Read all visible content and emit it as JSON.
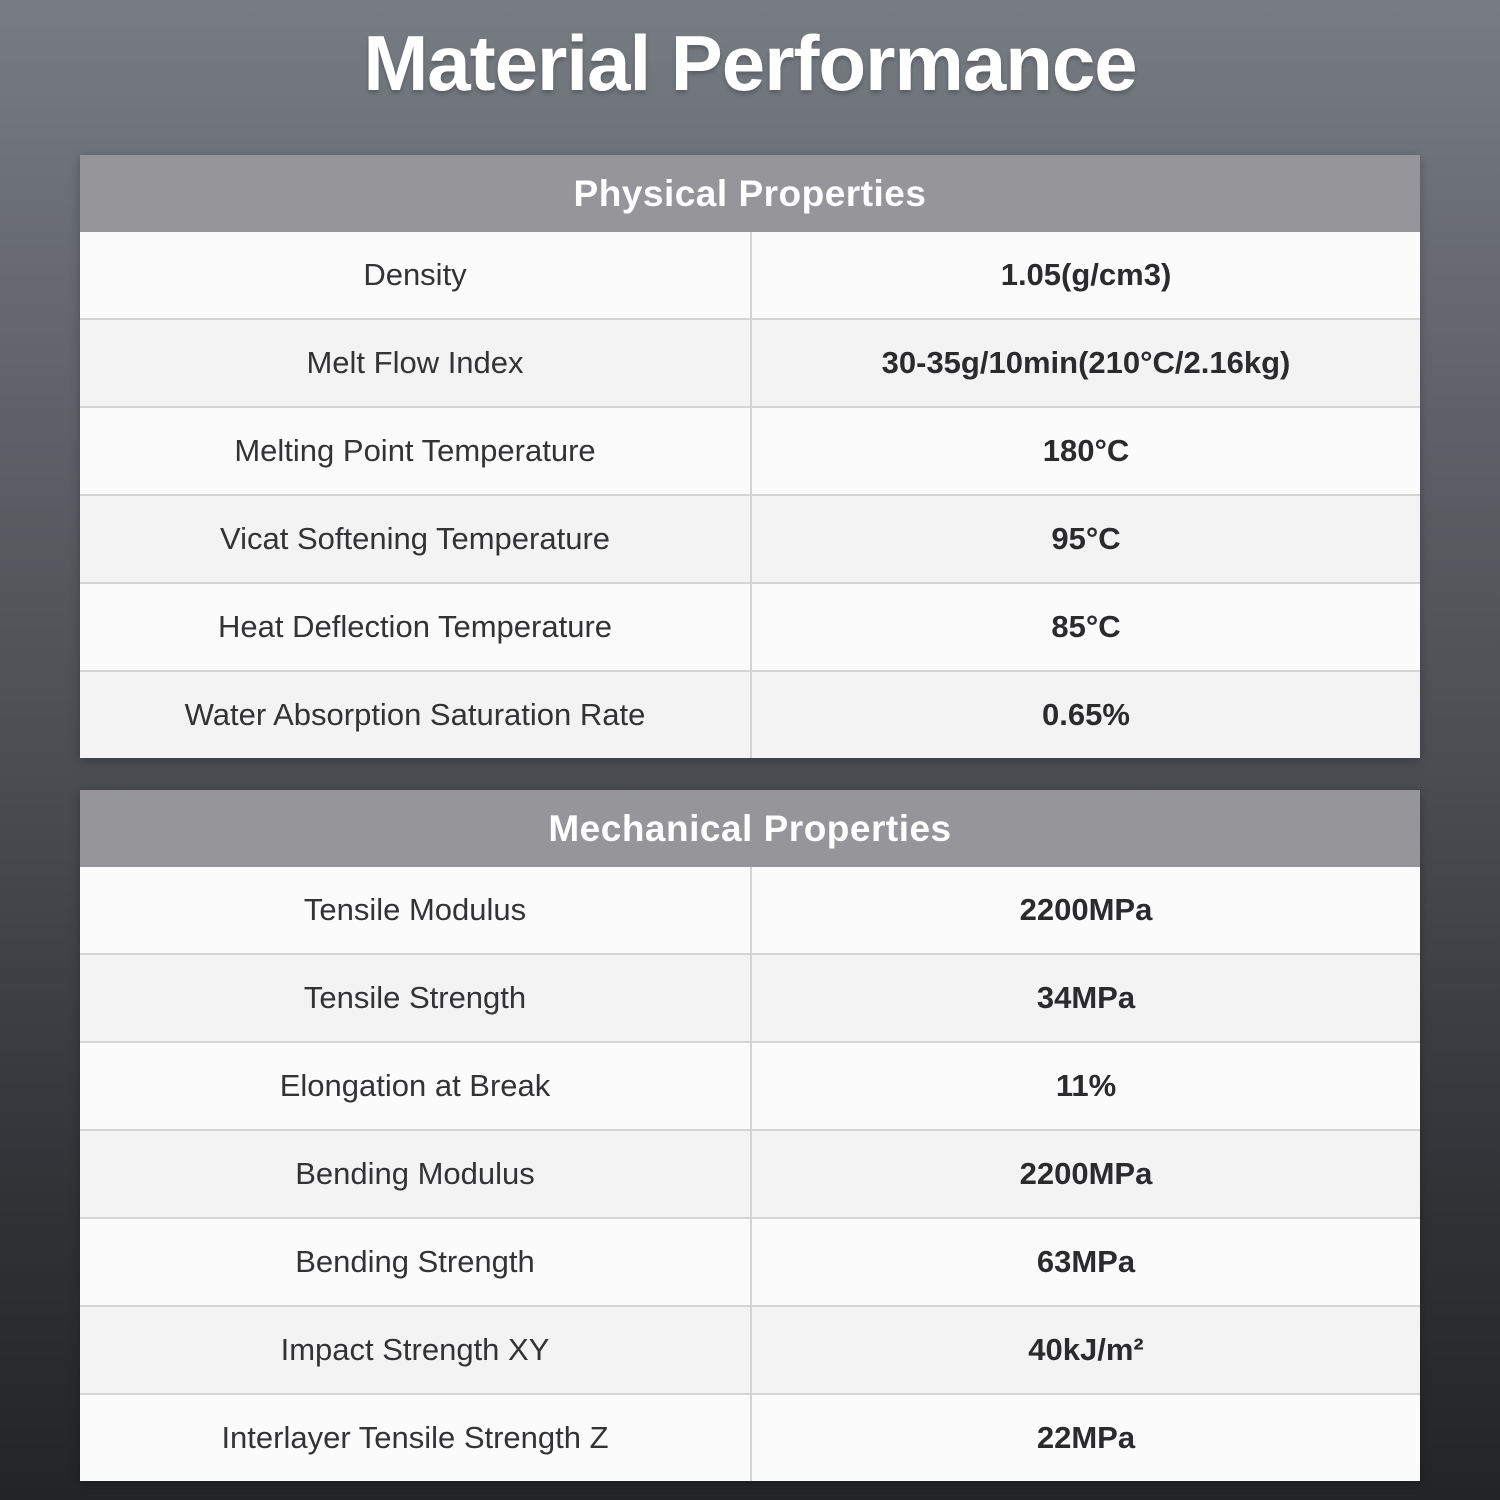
{
  "title": "Material Performance",
  "colors": {
    "background_top": "#777c83",
    "background_bottom": "#222427",
    "table_header_bg": "#95959a",
    "table_header_text": "#ffffff",
    "row_bg": "#fbfbfc",
    "row_alt_bg": "#f3f3f4",
    "divider": "#d4d4d6",
    "label_text": "#333336",
    "value_text": "#2b2b2e"
  },
  "tables": [
    {
      "header": "Physical Properties",
      "rows": [
        {
          "label": "Density",
          "value": "1.05(g/cm3)"
        },
        {
          "label": "Melt Flow Index",
          "value": "30-35g/10min(210°C/2.16kg)"
        },
        {
          "label": "Melting Point Temperature",
          "value": "180°C"
        },
        {
          "label": "Vicat Softening Temperature",
          "value": "95°C"
        },
        {
          "label": "Heat Deflection Temperature",
          "value": "85°C"
        },
        {
          "label": "Water Absorption Saturation Rate",
          "value": "0.65%"
        }
      ]
    },
    {
      "header": "Mechanical Properties",
      "rows": [
        {
          "label": "Tensile Modulus",
          "value": "2200MPa"
        },
        {
          "label": "Tensile Strength",
          "value": "34MPa"
        },
        {
          "label": "Elongation at Break",
          "value": "11%"
        },
        {
          "label": "Bending Modulus",
          "value": "2200MPa"
        },
        {
          "label": "Bending Strength",
          "value": "63MPa"
        },
        {
          "label": "Impact Strength XY",
          "value": "40kJ/m²"
        },
        {
          "label": "Interlayer Tensile Strength Z",
          "value": "22MPa"
        }
      ]
    }
  ]
}
